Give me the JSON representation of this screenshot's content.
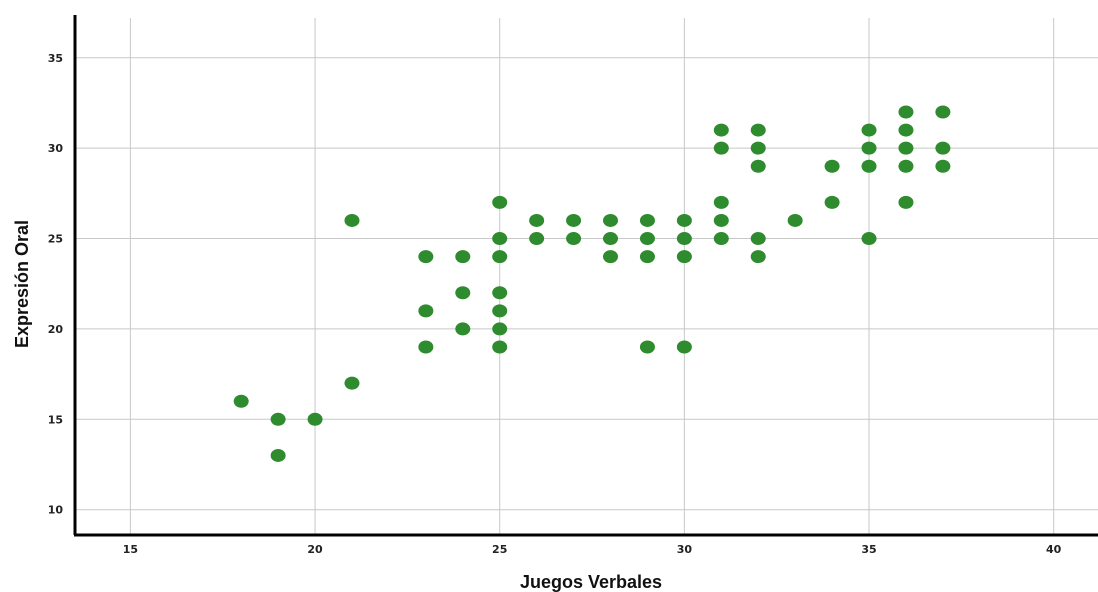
{
  "chart_data": {
    "type": "scatter",
    "xlabel": "Juegos Verbales",
    "ylabel": "Expresión Oral",
    "xlim": [
      13.5,
      41.2
    ],
    "ylim": [
      8.6,
      37.2
    ],
    "xticks": [
      15,
      20,
      25,
      30,
      35,
      40
    ],
    "yticks": [
      10,
      15,
      20,
      25,
      30,
      35
    ],
    "grid": true,
    "point_color": "#2e8b2e",
    "points": [
      [
        18,
        16
      ],
      [
        19,
        15
      ],
      [
        19,
        13
      ],
      [
        20,
        15
      ],
      [
        21,
        26
      ],
      [
        21,
        17
      ],
      [
        23,
        24
      ],
      [
        23,
        21
      ],
      [
        23,
        19
      ],
      [
        24,
        24
      ],
      [
        24,
        22
      ],
      [
        24,
        20
      ],
      [
        25,
        27
      ],
      [
        25,
        25
      ],
      [
        25,
        24
      ],
      [
        25,
        22
      ],
      [
        25,
        21
      ],
      [
        25,
        20
      ],
      [
        25,
        19
      ],
      [
        26,
        26
      ],
      [
        26,
        25
      ],
      [
        27,
        26
      ],
      [
        27,
        25
      ],
      [
        28,
        26
      ],
      [
        28,
        25
      ],
      [
        28,
        24
      ],
      [
        29,
        26
      ],
      [
        29,
        25
      ],
      [
        29,
        24
      ],
      [
        29,
        19
      ],
      [
        30,
        26
      ],
      [
        30,
        25
      ],
      [
        30,
        24
      ],
      [
        30,
        19
      ],
      [
        31,
        31
      ],
      [
        31,
        30
      ],
      [
        31,
        27
      ],
      [
        31,
        26
      ],
      [
        31,
        25
      ],
      [
        32,
        31
      ],
      [
        32,
        30
      ],
      [
        32,
        29
      ],
      [
        32,
        25
      ],
      [
        32,
        24
      ],
      [
        33,
        26
      ],
      [
        34,
        29
      ],
      [
        34,
        27
      ],
      [
        35,
        31
      ],
      [
        35,
        30
      ],
      [
        35,
        29
      ],
      [
        35,
        25
      ],
      [
        36,
        32
      ],
      [
        36,
        31
      ],
      [
        36,
        30
      ],
      [
        36,
        29
      ],
      [
        36,
        27
      ],
      [
        37,
        32
      ],
      [
        37,
        30
      ],
      [
        37,
        29
      ]
    ]
  }
}
